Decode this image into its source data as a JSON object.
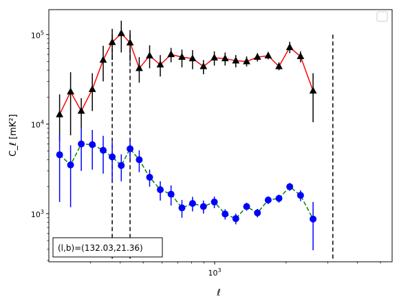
{
  "chart_data": {
    "type": "scatter",
    "xscale": "log",
    "yscale": "log",
    "xlim": [
      200,
      5600
    ],
    "ylim": [
      290,
      190000
    ],
    "x_ticks": [
      {
        "value": 1000,
        "base": "10",
        "exp": "3"
      }
    ],
    "y_ticks": [
      {
        "value": 1000,
        "base": "10",
        "exp": "3"
      },
      {
        "value": 10000,
        "base": "10",
        "exp": "4"
      },
      {
        "value": 100000,
        "base": "10",
        "exp": "5"
      }
    ],
    "xlabel": "ℓ",
    "ylabel": "C_ℓ [mK²]",
    "annotation": "(l,b)=(132.03,21.36)",
    "legend": "upper right, empty",
    "vlines": [
      370,
      440,
      3150
    ],
    "series": [
      {
        "line_color": "#ff0000",
        "line_style": "solid",
        "marker": "triangle",
        "marker_color": "#000000",
        "errbar_color": "#000000",
        "points": [
          {
            "x": 222,
            "y": 12800,
            "lo": 6500,
            "hi": 21500
          },
          {
            "x": 247,
            "y": 23000,
            "lo": 7500,
            "hi": 38000
          },
          {
            "x": 274,
            "y": 14000,
            "lo": 9000,
            "hi": 19500
          },
          {
            "x": 305,
            "y": 24500,
            "lo": 14000,
            "hi": 37000
          },
          {
            "x": 339,
            "y": 52000,
            "lo": 30000,
            "hi": 75000
          },
          {
            "x": 370,
            "y": 82000,
            "lo": 52000,
            "hi": 116000
          },
          {
            "x": 404,
            "y": 103000,
            "lo": 63000,
            "hi": 143000
          },
          {
            "x": 440,
            "y": 81000,
            "lo": 50000,
            "hi": 112000
          },
          {
            "x": 481,
            "y": 42000,
            "lo": 29000,
            "hi": 56000
          },
          {
            "x": 532,
            "y": 58000,
            "lo": 42000,
            "hi": 76000
          },
          {
            "x": 590,
            "y": 46000,
            "lo": 34000,
            "hi": 59000
          },
          {
            "x": 655,
            "y": 60000,
            "lo": 49000,
            "hi": 71000
          },
          {
            "x": 728,
            "y": 56000,
            "lo": 43000,
            "hi": 68000
          },
          {
            "x": 807,
            "y": 54000,
            "lo": 41000,
            "hi": 67000
          },
          {
            "x": 897,
            "y": 44000,
            "lo": 36000,
            "hi": 52000
          },
          {
            "x": 997,
            "y": 55000,
            "lo": 45000,
            "hi": 65000
          },
          {
            "x": 1107,
            "y": 54000,
            "lo": 45000,
            "hi": 63000
          },
          {
            "x": 1228,
            "y": 51000,
            "lo": 43000,
            "hi": 59000
          },
          {
            "x": 1364,
            "y": 50000,
            "lo": 44000,
            "hi": 57000
          },
          {
            "x": 1515,
            "y": 56000,
            "lo": 50000,
            "hi": 62000
          },
          {
            "x": 1682,
            "y": 58000,
            "lo": 53000,
            "hi": 64000
          },
          {
            "x": 1867,
            "y": 44000,
            "lo": 40000,
            "hi": 49000
          },
          {
            "x": 2073,
            "y": 72000,
            "lo": 62000,
            "hi": 83000
          },
          {
            "x": 2302,
            "y": 57000,
            "lo": 49000,
            "hi": 65000
          },
          {
            "x": 2600,
            "y": 23500,
            "lo": 10500,
            "hi": 37000
          }
        ]
      },
      {
        "line_color": "#008000",
        "line_style": "dashed",
        "marker": "circle",
        "marker_color": "#0000ff",
        "errbar_color": "#0000ff",
        "points": [
          {
            "x": 222,
            "y": 4550,
            "lo": 1350,
            "hi": 7700
          },
          {
            "x": 247,
            "y": 3500,
            "lo": 1180,
            "hi": 5800
          },
          {
            "x": 274,
            "y": 6000,
            "lo": 3000,
            "hi": 9000
          },
          {
            "x": 305,
            "y": 5900,
            "lo": 3100,
            "hi": 8600
          },
          {
            "x": 339,
            "y": 5100,
            "lo": 2800,
            "hi": 7400
          },
          {
            "x": 370,
            "y": 4300,
            "lo": 2300,
            "hi": 6300
          },
          {
            "x": 404,
            "y": 3450,
            "lo": 2300,
            "hi": 4600
          },
          {
            "x": 440,
            "y": 5300,
            "lo": 4100,
            "hi": 6500
          },
          {
            "x": 481,
            "y": 4000,
            "lo": 2900,
            "hi": 5100
          },
          {
            "x": 532,
            "y": 2550,
            "lo": 2000,
            "hi": 3100
          },
          {
            "x": 590,
            "y": 1850,
            "lo": 1400,
            "hi": 2300
          },
          {
            "x": 655,
            "y": 1650,
            "lo": 1230,
            "hi": 2070
          },
          {
            "x": 728,
            "y": 1160,
            "lo": 900,
            "hi": 1420
          },
          {
            "x": 807,
            "y": 1300,
            "lo": 1060,
            "hi": 1540
          },
          {
            "x": 897,
            "y": 1200,
            "lo": 1000,
            "hi": 1400
          },
          {
            "x": 997,
            "y": 1350,
            "lo": 1150,
            "hi": 1550
          },
          {
            "x": 1107,
            "y": 990,
            "lo": 860,
            "hi": 1120
          },
          {
            "x": 1228,
            "y": 880,
            "lo": 760,
            "hi": 1000
          },
          {
            "x": 1364,
            "y": 1200,
            "lo": 1080,
            "hi": 1320
          },
          {
            "x": 1515,
            "y": 1020,
            "lo": 910,
            "hi": 1130
          },
          {
            "x": 1682,
            "y": 1420,
            "lo": 1280,
            "hi": 1560
          },
          {
            "x": 1867,
            "y": 1480,
            "lo": 1330,
            "hi": 1630
          },
          {
            "x": 2073,
            "y": 2000,
            "lo": 1800,
            "hi": 2200
          },
          {
            "x": 2302,
            "y": 1600,
            "lo": 1380,
            "hi": 1820
          },
          {
            "x": 2600,
            "y": 870,
            "lo": 390,
            "hi": 1350
          }
        ]
      }
    ]
  }
}
